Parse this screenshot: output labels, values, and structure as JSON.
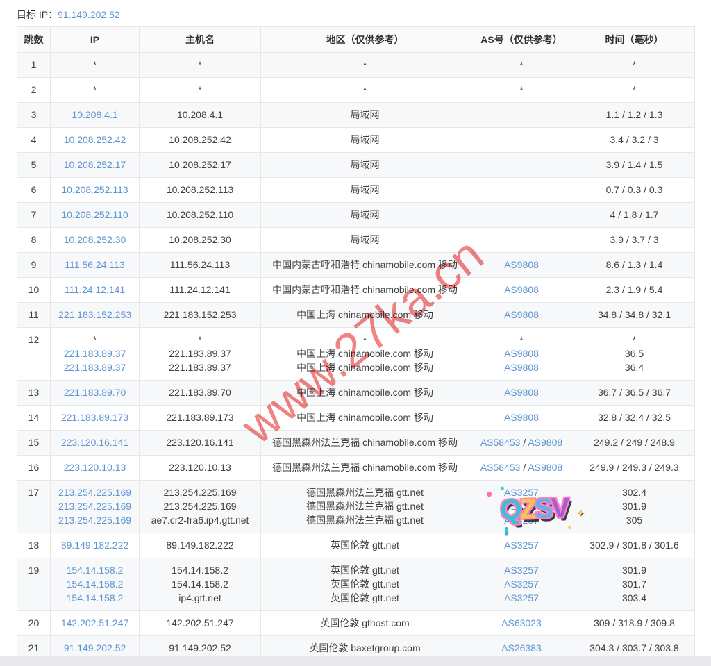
{
  "page": {
    "target_label": "目标 IP：",
    "target_ip": "91.149.202.52"
  },
  "colors": {
    "link_blue": "#5d95d2",
    "watermark_red": "#f07878",
    "row_stripe": "#f7f8f9",
    "border": "#e7e7e7"
  },
  "watermark": {
    "text": "www.27ka.cn"
  },
  "sticker": {
    "text": "QZSV",
    "letters": [
      "Q",
      "Z",
      "S",
      "V"
    ],
    "colors": [
      "#2ec6d8",
      "#f7c948",
      "#57b6f0",
      "#a05fd6"
    ],
    "sparkle": "✦"
  },
  "table": {
    "headers": [
      "跳数",
      "IP",
      "主机名",
      "地区（仅供参考）",
      "AS号（仅供参考）",
      "时间（毫秒）"
    ],
    "rows": [
      {
        "hop": "1",
        "ip": [
          "*"
        ],
        "host": [
          "*"
        ],
        "region": [
          "*"
        ],
        "asn": [
          [
            "*"
          ]
        ],
        "time": [
          "*"
        ]
      },
      {
        "hop": "2",
        "ip": [
          "*"
        ],
        "host": [
          "*"
        ],
        "region": [
          "*"
        ],
        "asn": [
          [
            "*"
          ]
        ],
        "time": [
          "*"
        ]
      },
      {
        "hop": "3",
        "ip": [
          "10.208.4.1"
        ],
        "host": [
          "10.208.4.1"
        ],
        "region": [
          "局域网"
        ],
        "asn": [],
        "time": [
          "1.1 / 1.2 / 1.3"
        ]
      },
      {
        "hop": "4",
        "ip": [
          "10.208.252.42"
        ],
        "host": [
          "10.208.252.42"
        ],
        "region": [
          "局域网"
        ],
        "asn": [],
        "time": [
          "3.4 / 3.2 / 3"
        ]
      },
      {
        "hop": "5",
        "ip": [
          "10.208.252.17"
        ],
        "host": [
          "10.208.252.17"
        ],
        "region": [
          "局域网"
        ],
        "asn": [],
        "time": [
          "3.9 / 1.4 / 1.5"
        ]
      },
      {
        "hop": "6",
        "ip": [
          "10.208.252.113"
        ],
        "host": [
          "10.208.252.113"
        ],
        "region": [
          "局域网"
        ],
        "asn": [],
        "time": [
          "0.7 / 0.3 / 0.3"
        ]
      },
      {
        "hop": "7",
        "ip": [
          "10.208.252.110"
        ],
        "host": [
          "10.208.252.110"
        ],
        "region": [
          "局域网"
        ],
        "asn": [],
        "time": [
          "4 / 1.8 / 1.7"
        ]
      },
      {
        "hop": "8",
        "ip": [
          "10.208.252.30"
        ],
        "host": [
          "10.208.252.30"
        ],
        "region": [
          "局域网"
        ],
        "asn": [],
        "time": [
          "3.9 / 3.7 / 3"
        ]
      },
      {
        "hop": "9",
        "ip": [
          "111.56.24.113"
        ],
        "host": [
          "111.56.24.113"
        ],
        "region": [
          "中国内蒙古呼和浩特 chinamobile.com 移动"
        ],
        "asn": [
          [
            "AS9808"
          ]
        ],
        "time": [
          "8.6 / 1.3 / 1.4"
        ]
      },
      {
        "hop": "10",
        "ip": [
          "111.24.12.141"
        ],
        "host": [
          "111.24.12.141"
        ],
        "region": [
          "中国内蒙古呼和浩特 chinamobile.com 移动"
        ],
        "asn": [
          [
            "AS9808"
          ]
        ],
        "time": [
          "2.3 / 1.9 / 5.4"
        ]
      },
      {
        "hop": "11",
        "ip": [
          "221.183.152.253"
        ],
        "host": [
          "221.183.152.253"
        ],
        "region": [
          "中国上海 chinamobile.com 移动"
        ],
        "asn": [
          [
            "AS9808"
          ]
        ],
        "time": [
          "34.8 / 34.8 / 32.1"
        ]
      },
      {
        "hop": "12",
        "ip": [
          "*",
          "221.183.89.37",
          "221.183.89.37"
        ],
        "host": [
          "*",
          "221.183.89.37",
          "221.183.89.37"
        ],
        "region": [
          "*",
          "中国上海 chinamobile.com 移动",
          "中国上海 chinamobile.com 移动"
        ],
        "asn": [
          [
            "*"
          ],
          [
            "AS9808"
          ],
          [
            "AS9808"
          ]
        ],
        "time": [
          "*",
          "36.5",
          "36.4"
        ]
      },
      {
        "hop": "13",
        "ip": [
          "221.183.89.70"
        ],
        "host": [
          "221.183.89.70"
        ],
        "region": [
          "中国上海 chinamobile.com 移动"
        ],
        "asn": [
          [
            "AS9808"
          ]
        ],
        "time": [
          "36.7 / 36.5 / 36.7"
        ]
      },
      {
        "hop": "14",
        "ip": [
          "221.183.89.173"
        ],
        "host": [
          "221.183.89.173"
        ],
        "region": [
          "中国上海 chinamobile.com 移动"
        ],
        "asn": [
          [
            "AS9808"
          ]
        ],
        "time": [
          "32.8 / 32.4 / 32.5"
        ]
      },
      {
        "hop": "15",
        "ip": [
          "223.120.16.141"
        ],
        "host": [
          "223.120.16.141"
        ],
        "region": [
          "德国黑森州法兰克福 chinamobile.com 移动"
        ],
        "asn": [
          [
            "AS58453",
            "AS9808"
          ]
        ],
        "time": [
          "249.2 / 249 / 248.9"
        ]
      },
      {
        "hop": "16",
        "ip": [
          "223.120.10.13"
        ],
        "host": [
          "223.120.10.13"
        ],
        "region": [
          "德国黑森州法兰克福 chinamobile.com 移动"
        ],
        "asn": [
          [
            "AS58453",
            "AS9808"
          ]
        ],
        "time": [
          "249.9 / 249.3 / 249.3"
        ]
      },
      {
        "hop": "17",
        "ip": [
          "213.254.225.169",
          "213.254.225.169",
          "213.254.225.169"
        ],
        "host": [
          "213.254.225.169",
          "213.254.225.169",
          "ae7.cr2-fra6.ip4.gtt.net"
        ],
        "region": [
          "德国黑森州法兰克福 gtt.net",
          "德国黑森州法兰克福 gtt.net",
          "德国黑森州法兰克福 gtt.net"
        ],
        "asn": [
          [
            "AS3257"
          ],
          [
            "AS3257"
          ],
          [
            "AS3257"
          ]
        ],
        "time": [
          "302.4",
          "301.9",
          "305"
        ]
      },
      {
        "hop": "18",
        "ip": [
          "89.149.182.222"
        ],
        "host": [
          "89.149.182.222"
        ],
        "region": [
          "英国伦敦 gtt.net"
        ],
        "asn": [
          [
            "AS3257"
          ]
        ],
        "time": [
          "302.9 / 301.8 / 301.6"
        ]
      },
      {
        "hop": "19",
        "ip": [
          "154.14.158.2",
          "154.14.158.2",
          "154.14.158.2"
        ],
        "host": [
          "154.14.158.2",
          "154.14.158.2",
          "ip4.gtt.net"
        ],
        "region": [
          "英国伦敦 gtt.net",
          "英国伦敦 gtt.net",
          "英国伦敦 gtt.net"
        ],
        "asn": [
          [
            "AS3257"
          ],
          [
            "AS3257"
          ],
          [
            "AS3257"
          ]
        ],
        "time": [
          "301.9",
          "301.7",
          "303.4"
        ]
      },
      {
        "hop": "20",
        "ip": [
          "142.202.51.247"
        ],
        "host": [
          "142.202.51.247"
        ],
        "region": [
          "英国伦敦 gthost.com"
        ],
        "asn": [
          [
            "AS63023"
          ]
        ],
        "time": [
          "309 / 318.9 / 309.8"
        ]
      },
      {
        "hop": "21",
        "ip": [
          "91.149.202.52"
        ],
        "host": [
          "91.149.202.52"
        ],
        "region": [
          "英国伦敦 baxetgroup.com"
        ],
        "asn": [
          [
            "AS26383"
          ]
        ],
        "time": [
          "304.3 / 303.7 / 303.8"
        ]
      }
    ]
  }
}
